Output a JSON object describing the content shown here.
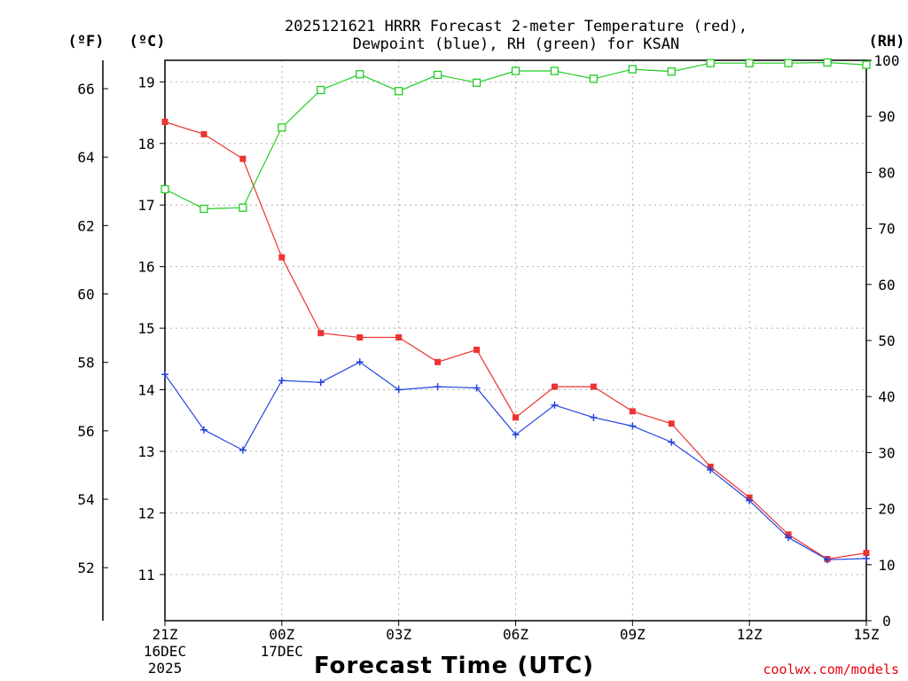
{
  "chart_data": {
    "type": "line",
    "title_line1": "2025121621 HRRR Forecast 2-meter Temperature (red),",
    "title_line2": "Dewpoint (blue), RH (green) for KSAN",
    "xlabel": "Forecast Time (UTC)",
    "credit": "coolwx.com/models",
    "units": {
      "fahrenheit": "(ºF)",
      "celsius": "(ºC)",
      "rh": "(RH)"
    },
    "x_hours": [
      0,
      1,
      2,
      3,
      4,
      5,
      6,
      7,
      8,
      9,
      10,
      11,
      12,
      13,
      14,
      15,
      16,
      17,
      18
    ],
    "x_ticks": [
      {
        "hour": 0,
        "label": "21Z",
        "sub1": "16DEC",
        "sub2": "2025"
      },
      {
        "hour": 3,
        "label": "00Z",
        "sub1": "17DEC",
        "sub2": ""
      },
      {
        "hour": 6,
        "label": "03Z",
        "sub1": "",
        "sub2": ""
      },
      {
        "hour": 9,
        "label": "06Z",
        "sub1": "",
        "sub2": ""
      },
      {
        "hour": 12,
        "label": "09Z",
        "sub1": "",
        "sub2": ""
      },
      {
        "hour": 15,
        "label": "12Z",
        "sub1": "",
        "sub2": ""
      },
      {
        "hour": 18,
        "label": "15Z",
        "sub1": "",
        "sub2": ""
      }
    ],
    "ylim_celsius": [
      10.25,
      19.35
    ],
    "yticks_celsius": [
      11,
      12,
      13,
      14,
      15,
      16,
      17,
      18,
      19
    ],
    "yticks_fahrenheit": [
      52,
      54,
      56,
      58,
      60,
      62,
      64,
      66
    ],
    "ylim_rh": [
      0,
      100
    ],
    "yticks_rh": [
      0,
      10,
      20,
      30,
      40,
      50,
      60,
      70,
      80,
      90,
      100
    ],
    "series": [
      {
        "name": "Temperature",
        "axis": "celsius",
        "color": "#ee3333",
        "marker": "filled-square",
        "values": [
          18.35,
          18.15,
          17.75,
          16.15,
          14.92,
          14.85,
          14.85,
          14.45,
          14.65,
          13.55,
          14.05,
          14.05,
          13.65,
          13.45,
          12.75,
          12.25,
          11.65,
          11.25,
          11.35
        ]
      },
      {
        "name": "Dewpoint",
        "axis": "celsius",
        "color": "#2244dd",
        "marker": "plus",
        "values": [
          14.25,
          13.35,
          13.02,
          14.15,
          14.12,
          14.45,
          14.0,
          14.05,
          14.03,
          13.27,
          13.75,
          13.55,
          13.41,
          13.15,
          12.7,
          12.2,
          11.6,
          11.24,
          11.26
        ]
      },
      {
        "name": "RH",
        "axis": "rh",
        "color": "#22cc22",
        "marker": "open-square",
        "values": [
          77,
          73.5,
          73.7,
          88,
          94.7,
          97.5,
          94.5,
          97.4,
          96,
          98.1,
          98.1,
          96.7,
          98.4,
          98,
          99.5,
          99.5,
          99.5,
          99.6,
          99.2
        ]
      }
    ]
  }
}
